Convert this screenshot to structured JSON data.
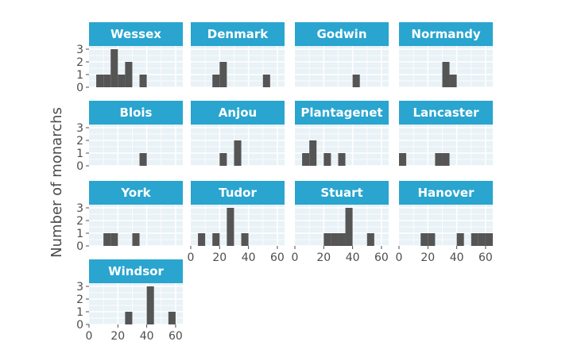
{
  "chart_data": {
    "type": "bar",
    "title": "",
    "xlabel": "",
    "ylabel": "Number of monarchs",
    "xlim": [
      0,
      65
    ],
    "ylim": [
      0,
      3
    ],
    "x_ticks": [
      0,
      20,
      40,
      60
    ],
    "y_ticks": [
      0,
      1,
      2,
      3
    ],
    "bin_width": 5,
    "grid": true,
    "colors": {
      "strip": "#29a5cf",
      "panel": "#e9f2f6",
      "bar": "#555555",
      "grid": "#ffffff"
    },
    "facets": [
      {
        "name": "Wessex",
        "bins": [
          {
            "x0": 5,
            "count": 1
          },
          {
            "x0": 10,
            "count": 1
          },
          {
            "x0": 15,
            "count": 3
          },
          {
            "x0": 20,
            "count": 1
          },
          {
            "x0": 25,
            "count": 2
          },
          {
            "x0": 35,
            "count": 1
          }
        ]
      },
      {
        "name": "Denmark",
        "bins": [
          {
            "x0": 15,
            "count": 1
          },
          {
            "x0": 20,
            "count": 2
          },
          {
            "x0": 50,
            "count": 1
          }
        ]
      },
      {
        "name": "Godwin",
        "bins": [
          {
            "x0": 40,
            "count": 1
          }
        ]
      },
      {
        "name": "Normandy",
        "bins": [
          {
            "x0": 30,
            "count": 2
          },
          {
            "x0": 35,
            "count": 1
          }
        ]
      },
      {
        "name": "Blois",
        "bins": [
          {
            "x0": 35,
            "count": 1
          }
        ]
      },
      {
        "name": "Anjou",
        "bins": [
          {
            "x0": 20,
            "count": 1
          },
          {
            "x0": 30,
            "count": 2
          }
        ]
      },
      {
        "name": "Plantagenet",
        "bins": [
          {
            "x0": 5,
            "count": 1
          },
          {
            "x0": 10,
            "count": 2
          },
          {
            "x0": 20,
            "count": 1
          },
          {
            "x0": 30,
            "count": 1
          }
        ]
      },
      {
        "name": "Lancaster",
        "bins": [
          {
            "x0": 0,
            "count": 1
          },
          {
            "x0": 25,
            "count": 1
          },
          {
            "x0": 30,
            "count": 1
          }
        ]
      },
      {
        "name": "York",
        "bins": [
          {
            "x0": 10,
            "count": 1
          },
          {
            "x0": 15,
            "count": 1
          },
          {
            "x0": 30,
            "count": 1
          }
        ]
      },
      {
        "name": "Tudor",
        "bins": [
          {
            "x0": 5,
            "count": 1
          },
          {
            "x0": 15,
            "count": 1
          },
          {
            "x0": 25,
            "count": 3
          },
          {
            "x0": 35,
            "count": 1
          }
        ]
      },
      {
        "name": "Stuart",
        "bins": [
          {
            "x0": 20,
            "count": 1
          },
          {
            "x0": 25,
            "count": 1
          },
          {
            "x0": 30,
            "count": 1
          },
          {
            "x0": 35,
            "count": 3
          },
          {
            "x0": 50,
            "count": 1
          }
        ]
      },
      {
        "name": "Hanover",
        "bins": [
          {
            "x0": 15,
            "count": 1
          },
          {
            "x0": 20,
            "count": 1
          },
          {
            "x0": 40,
            "count": 1
          },
          {
            "x0": 50,
            "count": 1
          },
          {
            "x0": 55,
            "count": 1
          },
          {
            "x0": 60,
            "count": 1
          }
        ]
      },
      {
        "name": "Windsor",
        "bins": [
          {
            "x0": 25,
            "count": 1
          },
          {
            "x0": 40,
            "count": 3
          },
          {
            "x0": 55,
            "count": 1
          }
        ]
      }
    ]
  }
}
